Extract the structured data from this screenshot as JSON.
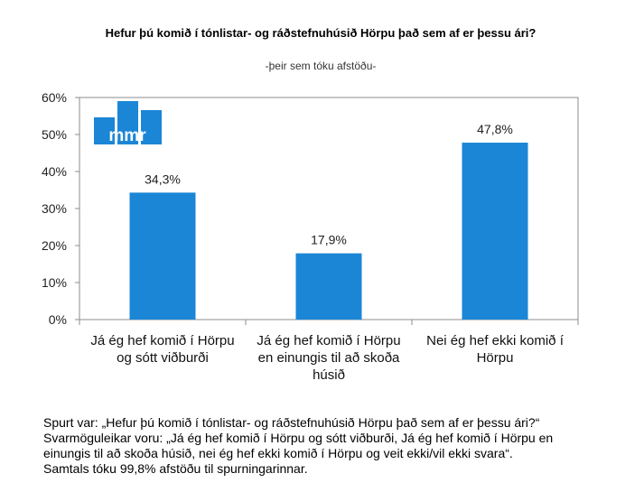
{
  "chart_data": {
    "type": "bar",
    "title": "Hefur þú komið í tónlistar- og ráðstefnuhúsið Hörpu það sem af er þessu ári?",
    "subtitle": "-þeir sem tóku afstöðu-",
    "categories": [
      "Já ég hef komið í Hörpu og sótt viðburði",
      "Já ég hef komið í Hörpu en einungis til að skoða húsið",
      "Nei ég hef ekki komið í Hörpu"
    ],
    "values": [
      34.3,
      17.9,
      47.8
    ],
    "data_labels": [
      "34,3%",
      "17,9%",
      "47,8%"
    ],
    "y_ticks": [
      "0%",
      "10%",
      "20%",
      "30%",
      "40%",
      "50%",
      "60%"
    ],
    "ylim": [
      0,
      60
    ],
    "xlabel": "",
    "ylabel": "",
    "grid": false,
    "bar_color": "#1b86d6"
  },
  "logo": {
    "text": "mmr",
    "color": "#1b86d6"
  },
  "footnote": {
    "lines": [
      "Spurt var: „Hefur þú komið í tónlistar- og ráðstefnuhúsið Hörpu það sem af er þessu ári?“",
      "Svarmöguleikar voru: „Já ég hef komið í Hörpu og sótt viðburði, Já ég hef komið í Hörpu en",
      "einungis til að skoða húsið, nei ég hef ekki komið í Hörpu og  veit ekki/vil ekki svara“.",
      "Samtals tóku 99,8% afstöðu til spurningarinnar."
    ]
  }
}
